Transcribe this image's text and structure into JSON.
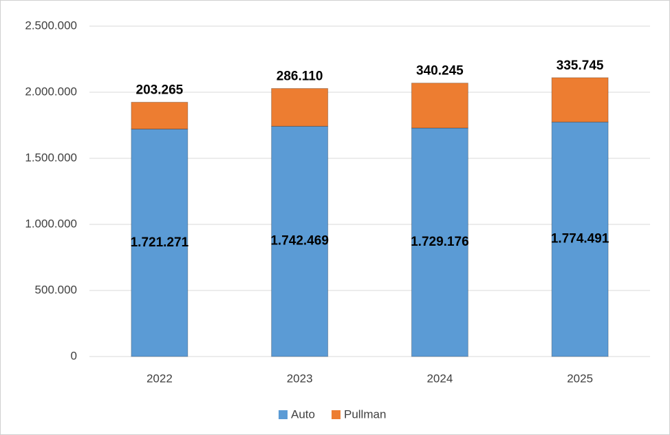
{
  "chart_data": {
    "type": "stacked_bar",
    "categories": [
      "2022",
      "2023",
      "2024",
      "2025"
    ],
    "series": [
      {
        "name": "Auto",
        "color": "#5b9bd5",
        "values": [
          1721271,
          1742469,
          1729176,
          1774491
        ],
        "value_labels": [
          "1.721.271",
          "1.742.469",
          "1.729.176",
          "1.774.491"
        ]
      },
      {
        "name": "Pullman",
        "color": "#ed7d31",
        "values": [
          203265,
          286110,
          340245,
          335745
        ],
        "value_labels": [
          "203.265",
          "286.110",
          "340.245",
          "335.745"
        ]
      }
    ],
    "ylim": [
      0,
      2500000
    ],
    "yticks": [
      0,
      {
        "value": 500000,
        "label": "500.000"
      },
      {
        "value": 1000000,
        "label": "1.000.000"
      },
      {
        "value": 1500000,
        "label": "1.500.000"
      },
      {
        "value": 2000000,
        "label": "2.000.000"
      },
      {
        "value": 2500000,
        "label": "2.500.000"
      }
    ],
    "grid": true,
    "legend": "bottom"
  }
}
